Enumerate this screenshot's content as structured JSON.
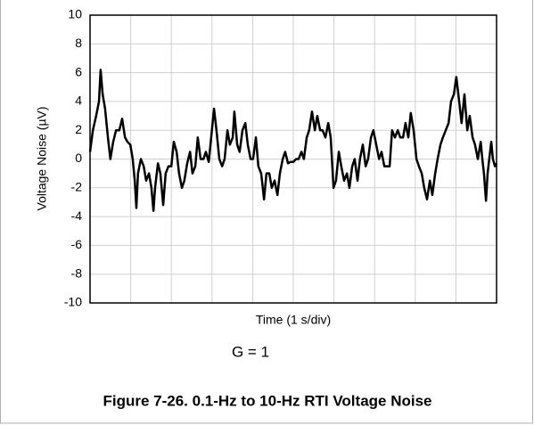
{
  "chart_data": {
    "type": "line",
    "y_label": "Voltage Noise (µV)",
    "x_label": "Time (1 s/div)",
    "annotation": "G = 1",
    "caption": "Figure 7-26. 0.1-Hz to 10-Hz RTI Voltage Noise",
    "xlim": [
      0,
      10
    ],
    "x_divisions": 10,
    "ylim": [
      -10,
      10
    ],
    "yticks": [
      -10,
      -8,
      -6,
      -4,
      -2,
      0,
      2,
      4,
      6,
      8,
      10
    ],
    "grid": true,
    "color": "#000000",
    "x": [
      0,
      0.07,
      0.15,
      0.22,
      0.26,
      0.31,
      0.37,
      0.44,
      0.5,
      0.57,
      0.64,
      0.72,
      0.79,
      0.86,
      0.92,
      0.99,
      1.05,
      1.1,
      1.14,
      1.18,
      1.25,
      1.32,
      1.38,
      1.45,
      1.51,
      1.56,
      1.6,
      1.67,
      1.73,
      1.8,
      1.86,
      1.93,
      2.0,
      2.06,
      2.13,
      2.19,
      2.26,
      2.32,
      2.39,
      2.46,
      2.52,
      2.59,
      2.65,
      2.72,
      2.79,
      2.85,
      2.92,
      2.98,
      3.05,
      3.11,
      3.18,
      3.25,
      3.31,
      3.38,
      3.44,
      3.51,
      3.55,
      3.62,
      3.68,
      3.75,
      3.82,
      3.88,
      3.95,
      4.01,
      4.08,
      4.14,
      4.21,
      4.28,
      4.34,
      4.41,
      4.47,
      4.54,
      4.61,
      4.67,
      4.74,
      4.8,
      4.87,
      4.93,
      5.0,
      5.07,
      5.13,
      5.2,
      5.26,
      5.33,
      5.39,
      5.46,
      5.53,
      5.59,
      5.66,
      5.72,
      5.79,
      5.86,
      5.92,
      5.99,
      6.05,
      6.12,
      6.18,
      6.25,
      6.32,
      6.38,
      6.45,
      6.51,
      6.58,
      6.64,
      6.71,
      6.78,
      6.84,
      6.91,
      6.97,
      7.04,
      7.11,
      7.17,
      7.24,
      7.3,
      7.37,
      7.43,
      7.5,
      7.57,
      7.63,
      7.7,
      7.76,
      7.83,
      7.89,
      7.96,
      8.03,
      8.09,
      8.16,
      8.22,
      8.29,
      8.36,
      8.42,
      8.49,
      8.55,
      8.62,
      8.68,
      8.75,
      8.82,
      8.88,
      8.95,
      9.01,
      9.08,
      9.14,
      9.21,
      9.28,
      9.34,
      9.41,
      9.47,
      9.54,
      9.61,
      9.65,
      9.69,
      9.74,
      9.78,
      9.82,
      9.87,
      9.91,
      9.96,
      10
    ],
    "values": [
      0.5,
      2,
      3,
      4,
      6.2,
      4.5,
      3.5,
      1.5,
      0,
      1.2,
      2,
      2,
      2.8,
      1.5,
      1.2,
      1,
      0,
      -1.5,
      -3.4,
      -1,
      0,
      -0.5,
      -1.5,
      -1,
      -2,
      -3.6,
      -2,
      -0.3,
      -1,
      -3.2,
      -1,
      -0.5,
      -0.5,
      1.2,
      0.5,
      -1,
      -2,
      -1.5,
      -0.3,
      0.5,
      -1,
      -0.5,
      1.5,
      0,
      0,
      0.5,
      -0.2,
      1.5,
      3.5,
      2,
      0,
      -0.5,
      0,
      2,
      1,
      1.5,
      3.3,
      1,
      0.5,
      2,
      2.5,
      1,
      0,
      0,
      1.5,
      -0.5,
      -1,
      -2.8,
      -1,
      -1,
      -2,
      -1.5,
      -2.5,
      -1,
      0,
      0.5,
      -0.3,
      -0.2,
      -0.2,
      0,
      0,
      0.5,
      0,
      1.5,
      2,
      3.3,
      2,
      3,
      2,
      2,
      1.5,
      2.5,
      1.5,
      -2,
      -1.5,
      0.5,
      -0.5,
      -1.5,
      -1,
      -2,
      -0.5,
      0,
      -1.5,
      0,
      1,
      -0.5,
      0,
      1.5,
      2,
      1,
      0,
      0.5,
      -0.5,
      -0.5,
      -0.5,
      2,
      1.5,
      2,
      1.5,
      1.5,
      2.5,
      1.5,
      3.2,
      2,
      0,
      -0.5,
      -1,
      -2,
      -2.8,
      -1.5,
      -2.5,
      -1,
      0,
      1,
      1.5,
      2,
      2.5,
      4,
      4.5,
      5.7,
      4,
      2.5,
      4.5,
      2,
      3,
      1.5,
      1,
      0,
      1.2,
      0,
      -1,
      -2.9,
      -1,
      0,
      1.2,
      0,
      -0.5,
      -0.3
    ]
  }
}
